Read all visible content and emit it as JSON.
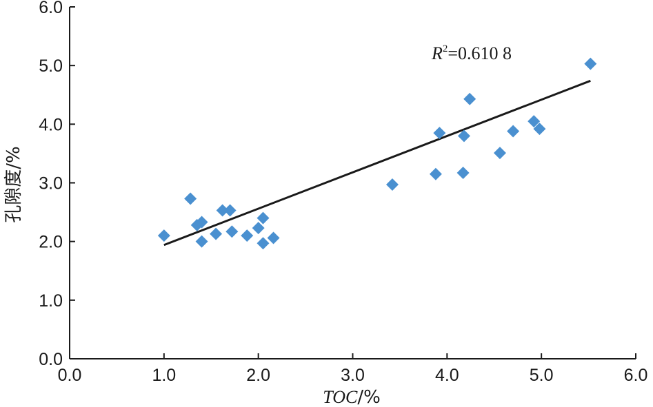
{
  "chart_data": {
    "type": "scatter",
    "xlabel_italic": "TOC",
    "xlabel_unit": "/%",
    "ylabel": "孔隙度/%",
    "xlim": [
      0,
      6
    ],
    "ylim": [
      0,
      6
    ],
    "xticks": [
      "0.0",
      "1.0",
      "2.0",
      "3.0",
      "4.0",
      "5.0",
      "6.0"
    ],
    "yticks": [
      "0.0",
      "1.0",
      "2.0",
      "3.0",
      "4.0",
      "5.0",
      "6.0"
    ],
    "grid": false,
    "marker": "diamond",
    "marker_color": "#4a90d0",
    "line_color": "#1a1a1a",
    "points": [
      {
        "x": 1.0,
        "y": 2.1
      },
      {
        "x": 1.28,
        "y": 2.73
      },
      {
        "x": 1.35,
        "y": 2.28
      },
      {
        "x": 1.4,
        "y": 2.33
      },
      {
        "x": 1.4,
        "y": 2.0
      },
      {
        "x": 1.55,
        "y": 2.13
      },
      {
        "x": 1.62,
        "y": 2.53
      },
      {
        "x": 1.7,
        "y": 2.53
      },
      {
        "x": 1.72,
        "y": 2.17
      },
      {
        "x": 1.88,
        "y": 2.1
      },
      {
        "x": 2.0,
        "y": 2.23
      },
      {
        "x": 2.05,
        "y": 2.4
      },
      {
        "x": 2.05,
        "y": 1.97
      },
      {
        "x": 2.16,
        "y": 2.06
      },
      {
        "x": 3.42,
        "y": 2.97
      },
      {
        "x": 3.88,
        "y": 3.15
      },
      {
        "x": 3.92,
        "y": 3.85
      },
      {
        "x": 4.17,
        "y": 3.17
      },
      {
        "x": 4.18,
        "y": 3.8
      },
      {
        "x": 4.24,
        "y": 4.43
      },
      {
        "x": 4.56,
        "y": 3.51
      },
      {
        "x": 4.7,
        "y": 3.88
      },
      {
        "x": 4.92,
        "y": 4.05
      },
      {
        "x": 4.98,
        "y": 3.92
      },
      {
        "x": 5.52,
        "y": 5.03
      }
    ],
    "trendline": {
      "x": [
        1.0,
        5.52
      ],
      "y": [
        1.94,
        4.74
      ]
    },
    "annotation": {
      "prefix": "R",
      "sup": "2",
      "value": "=0.610 8"
    }
  }
}
